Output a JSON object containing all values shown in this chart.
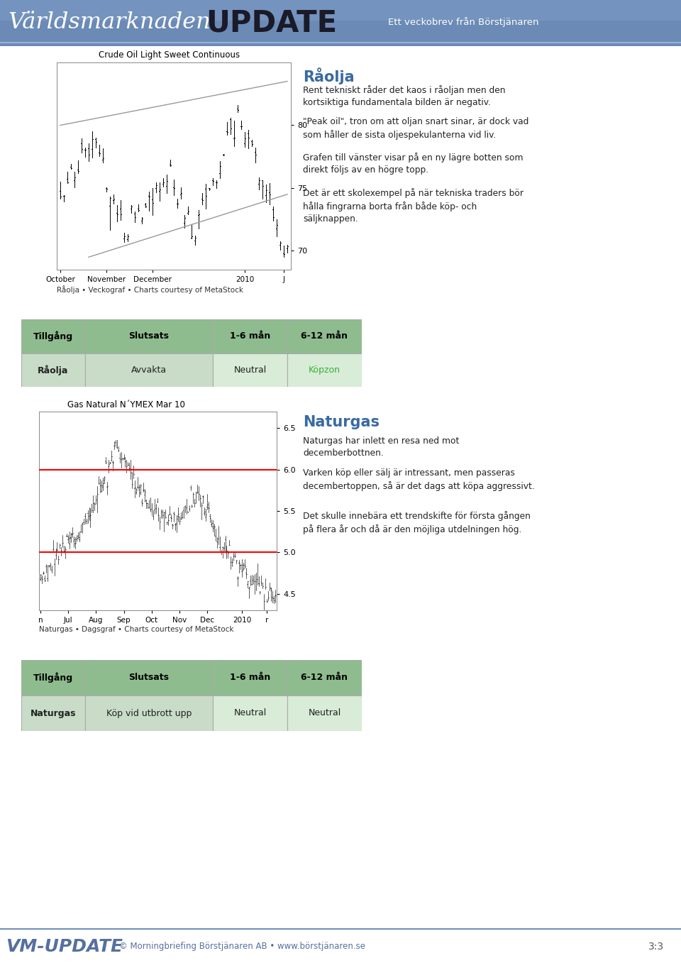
{
  "header_bg_top": "#7a96b8",
  "header_bg_bottom": "#5570a0",
  "header_text1": "Världsmarknaden",
  "header_text2": "UPDATE",
  "header_text3": "Ett veckobrev från Börstjänaren",
  "section1_title": "Råolja",
  "section1_title_color": "#3a6aa0",
  "section1_chart_title": "Crude Oil Light Sweet Continuous",
  "section1_xlabel_items": [
    "October",
    "November",
    "December",
    "2010",
    "J"
  ],
  "section1_yticks": [
    70,
    75,
    80
  ],
  "section1_caption": "Råolja • Veckograf • Charts courtesy of MetaStock",
  "section1_text": [
    "Rent tekniskt råder det kaos i råoljan men den\nkortsiktiga fundamentala bilden är negativ.",
    "\"Peak oil\", tron om att oljan snart sinar, är dock vad\nsom håller de sista oljespekulanterna vid liv.",
    "Grafen till vänster visar på en ny lägre botten som\ndirekt följs av en högre topp.",
    "Det är ett skolexempel på när tekniska traders bör\nhålla fingrarna borta från både köp- och\nsäljknappen."
  ],
  "table1_headers": [
    "Tillgång",
    "Slutsats",
    "1-6 mån",
    "6-12 mån"
  ],
  "table1_row": [
    "Råolja",
    "Avvakta",
    "Neutral",
    "Köpzon"
  ],
  "table1_highlight_col": 3,
  "table1_highlight_color": "#3ab03a",
  "section2_title": "Naturgas",
  "section2_title_color": "#3a6aa0",
  "section2_chart_title": "Gas Natural N´YMEX Mar 10",
  "section2_xlabel_items": [
    "n",
    "Jul",
    "Aug",
    "Sep",
    "Oct",
    "Nov",
    "Dec",
    "2010",
    "r"
  ],
  "section2_yticks": [
    4.5,
    5.0,
    5.5,
    6.0,
    6.5
  ],
  "section2_caption": "Naturgas • Dagsgraf • Charts courtesy of MetaStock",
  "section2_hline1": 6.0,
  "section2_hline2": 5.0,
  "section2_text": [
    "Naturgas har inlett en resa ned mot\ndecemberbottnen.",
    "Varken köp eller sälj är intressant, men passeras\ndecembertoppen, så är det dags att köpa aggressivt.",
    "Det skulle innebära ett trendskifte för första gången\npå flera år och då är den möjliga utdelningen hög."
  ],
  "table2_headers": [
    "Tillgång",
    "Slutsats",
    "1-6 mån",
    "6-12 mån"
  ],
  "table2_row": [
    "Naturgas",
    "Köp vid utbrott upp",
    "Neutral",
    "Neutral"
  ],
  "table2_highlight_col": -1,
  "footer_text1": "VM-UPDATE",
  "footer_text2": "© Morningbriefing Börstjänaren AB • www.börstjänaren.se",
  "footer_page": "3:3",
  "table_header_bg": "#8fbc8f",
  "table_header_text": "#000000",
  "table_header_bold": true,
  "table_row_bg1": "#c8dcc8",
  "table_row_bg2": "#ffffff",
  "table_border": "#aaaaaa",
  "body_bg": "#ffffff"
}
